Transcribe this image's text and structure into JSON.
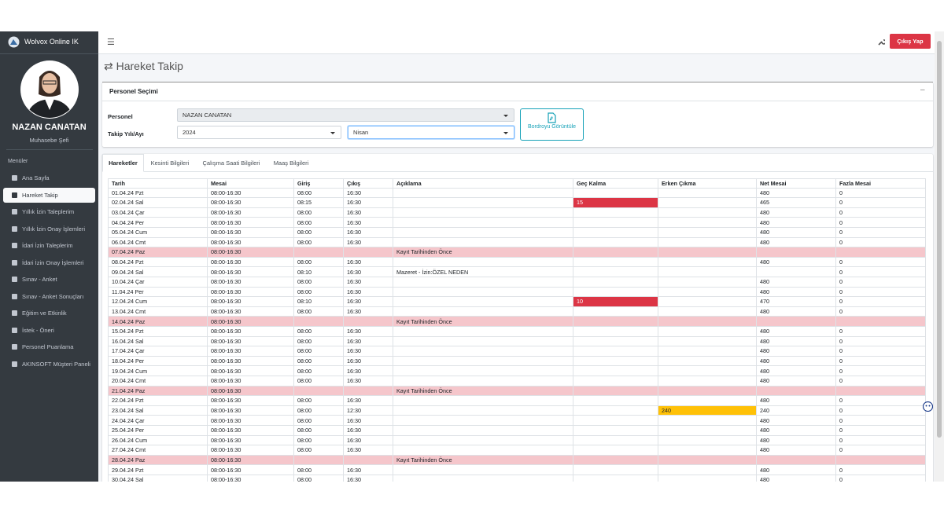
{
  "brand": "Wolvox Online IK",
  "user": {
    "name": "NAZAN CANATAN",
    "role": "Muhasebe Şefi"
  },
  "menu_header": "Menüler",
  "menu": [
    "Ana Sayfa",
    "Hareket Takip",
    "Yıllık İzin Taleplerim",
    "Yıllık İzin Onay İşlemleri",
    "İdari İzin Taleplerim",
    "İdari İzin Onay İşlemleri",
    "Sınav - Anket",
    "Sınav - Anket Sonuçları",
    "Eğitim ve Etkinlik",
    "İstek - Öneri",
    "Personel Puanlama",
    "AKINSOFT Müşteri Paneli"
  ],
  "topbar": {
    "logout": "Çıkış Yap"
  },
  "page_title": "Hareket Takip",
  "card": {
    "title": "Personel Seçimi",
    "personel_label": "Personel",
    "personel_value": "NAZAN CANATAN",
    "period_label": "Takip Yılı/Ayı",
    "year_value": "2024",
    "month_value": "Nisan",
    "button": "Bordroyu Görüntüle"
  },
  "tabs": [
    "Hareketler",
    "Kesinti Bilgileri",
    "Çalışma Saati Bilgileri",
    "Maaş Bilgileri"
  ],
  "table": {
    "columns": [
      "Tarih",
      "Mesai",
      "Giriş",
      "Çıkış",
      "Açıklama",
      "Geç Kalma",
      "Erken Çıkma",
      "Net Mesai",
      "Fazla Mesai"
    ],
    "rows": [
      [
        "01.04.24 Pzt",
        "08:00-16:30",
        "08:00",
        "16:30",
        null,
        null,
        null,
        480,
        0
      ],
      [
        "02.04.24 Sal",
        "08:00-16:30",
        "08:15",
        "16:30",
        null,
        15,
        null,
        465,
        0
      ],
      [
        "03.04.24 Çar",
        "08:00-16:30",
        "08:00",
        "16:30",
        null,
        null,
        null,
        480,
        0
      ],
      [
        "04.04.24 Per",
        "08:00-16:30",
        "08:00",
        "16:30",
        null,
        null,
        null,
        480,
        0
      ],
      [
        "05.04.24 Cum",
        "08:00-16:30",
        "08:00",
        "16:30",
        null,
        null,
        null,
        480,
        0
      ],
      [
        "06.04.24 Cmt",
        "08:00-16:30",
        "08:00",
        "16:30",
        null,
        null,
        null,
        480,
        0
      ],
      [
        "07.04.24 Paz",
        "08:00-16:30",
        null,
        null,
        "Kayıt Tarihinden Önce",
        null,
        null,
        null,
        null
      ],
      [
        "08.04.24 Pzt",
        "08:00-16:30",
        "08:00",
        "16:30",
        null,
        null,
        null,
        480,
        0
      ],
      [
        "09.04.24 Sal",
        "08:00-16:30",
        "08:10",
        "16:30",
        "Mazeret - İzin:ÖZEL NEDEN",
        null,
        null,
        null,
        0
      ],
      [
        "10.04.24 Çar",
        "08:00-16:30",
        "08:00",
        "16:30",
        null,
        null,
        null,
        480,
        0
      ],
      [
        "11.04.24 Per",
        "08:00-16:30",
        "08:00",
        "16:30",
        null,
        null,
        null,
        480,
        0
      ],
      [
        "12.04.24 Cum",
        "08:00-16:30",
        "08:10",
        "16:30",
        null,
        10,
        null,
        470,
        0
      ],
      [
        "13.04.24 Cmt",
        "08:00-16:30",
        "08:00",
        "16:30",
        null,
        null,
        null,
        480,
        0
      ],
      [
        "14.04.24 Paz",
        "08:00-16:30",
        null,
        null,
        "Kayıt Tarihinden Önce",
        null,
        null,
        null,
        null
      ],
      [
        "15.04.24 Pzt",
        "08:00-16:30",
        "08:00",
        "16:30",
        null,
        null,
        null,
        480,
        0
      ],
      [
        "16.04.24 Sal",
        "08:00-16:30",
        "08:00",
        "16:30",
        null,
        null,
        null,
        480,
        0
      ],
      [
        "17.04.24 Çar",
        "08:00-16:30",
        "08:00",
        "16:30",
        null,
        null,
        null,
        480,
        0
      ],
      [
        "18.04.24 Per",
        "08:00-16:30",
        "08:00",
        "16:30",
        null,
        null,
        null,
        480,
        0
      ],
      [
        "19.04.24 Cum",
        "08:00-16:30",
        "08:00",
        "16:30",
        null,
        null,
        null,
        480,
        0
      ],
      [
        "20.04.24 Cmt",
        "08:00-16:30",
        "08:00",
        "16:30",
        null,
        null,
        null,
        480,
        0
      ],
      [
        "21.04.24 Paz",
        "08:00-16:30",
        null,
        null,
        "Kayıt Tarihinden Önce",
        null,
        null,
        null,
        null
      ],
      [
        "22.04.24 Pzt",
        "08:00-16:30",
        "08:00",
        "16:30",
        null,
        null,
        null,
        480,
        0
      ],
      [
        "23.04.24 Sal",
        "08:00-16:30",
        "08:00",
        "12:30",
        null,
        null,
        240,
        240,
        0
      ],
      [
        "24.04.24 Çar",
        "08:00-16:30",
        "08:00",
        "16:30",
        null,
        null,
        null,
        480,
        0
      ],
      [
        "25.04.24 Per",
        "08:00-16:30",
        "08:00",
        "16:30",
        null,
        null,
        null,
        480,
        0
      ],
      [
        "26.04.24 Cum",
        "08:00-16:30",
        "08:00",
        "16:30",
        null,
        null,
        null,
        480,
        0
      ],
      [
        "27.04.24 Cmt",
        "08:00-16:30",
        "08:00",
        "16:30",
        null,
        null,
        null,
        480,
        0
      ],
      [
        "28.04.24 Paz",
        "08:00-16:30",
        null,
        null,
        "Kayıt Tarihinden Önce",
        null,
        null,
        null,
        null
      ],
      [
        "29.04.24 Pzt",
        "08:00-16:30",
        "08:00",
        "16:30",
        null,
        null,
        null,
        480,
        0
      ],
      [
        "30.04.24 Sal",
        "08:00-16:30",
        "08:00",
        "16:30",
        null,
        null,
        null,
        480,
        0
      ]
    ]
  }
}
